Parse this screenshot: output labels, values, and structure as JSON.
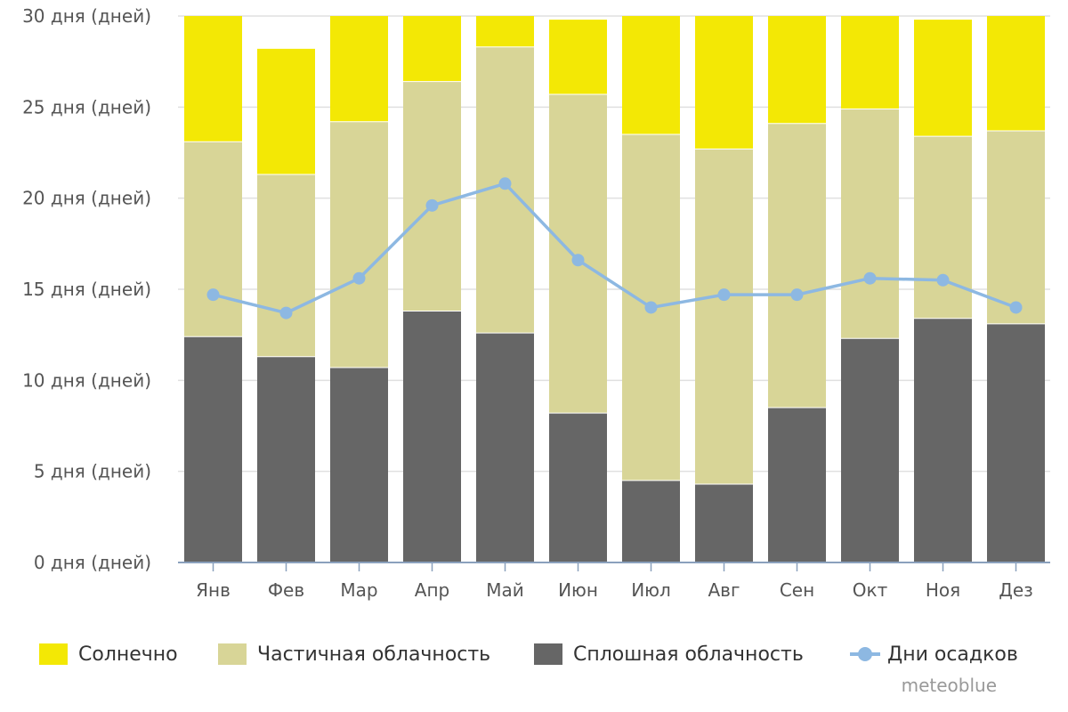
{
  "chart_data": {
    "type": "bar",
    "stacked": true,
    "categories": [
      "Янв",
      "Фев",
      "Мар",
      "Апр",
      "Май",
      "Июн",
      "Июл",
      "Авг",
      "Сен",
      "Окт",
      "Ноя",
      "Дез"
    ],
    "series": [
      {
        "name": "Сплошная облачность",
        "color": "#666666",
        "values": [
          12.4,
          11.3,
          10.7,
          13.8,
          12.6,
          8.2,
          4.5,
          4.3,
          8.5,
          12.3,
          13.4,
          13.1
        ]
      },
      {
        "name": "Частичная облачность",
        "color": "#d8d597",
        "values": [
          10.7,
          10.0,
          13.5,
          12.6,
          15.7,
          17.5,
          19.0,
          18.4,
          15.6,
          12.6,
          10.0,
          10.6
        ]
      },
      {
        "name": "Солнечно",
        "color": "#f3e805",
        "values": [
          6.9,
          6.9,
          5.8,
          3.6,
          1.7,
          4.1,
          6.5,
          7.3,
          5.9,
          5.1,
          6.4,
          6.3
        ]
      }
    ],
    "line_series": {
      "name": "Дни осадков",
      "color": "#8db8e2",
      "values": [
        14.7,
        13.7,
        15.6,
        19.6,
        20.8,
        16.6,
        14.0,
        14.7,
        14.7,
        15.6,
        15.5,
        14.0
      ]
    },
    "ylim": [
      0,
      30
    ],
    "yticks": [
      0,
      5,
      10,
      15,
      20,
      25,
      30
    ],
    "ytick_labels": [
      "0 дня (дней)",
      "5 дня (дней)",
      "10 дня (дней)",
      "15 дня (дней)",
      "20 дня (дней)",
      "25 дня (дней)",
      "30 дня (дней)"
    ],
    "grid": true,
    "legend_position": "bottom"
  },
  "credit": "meteoblue"
}
